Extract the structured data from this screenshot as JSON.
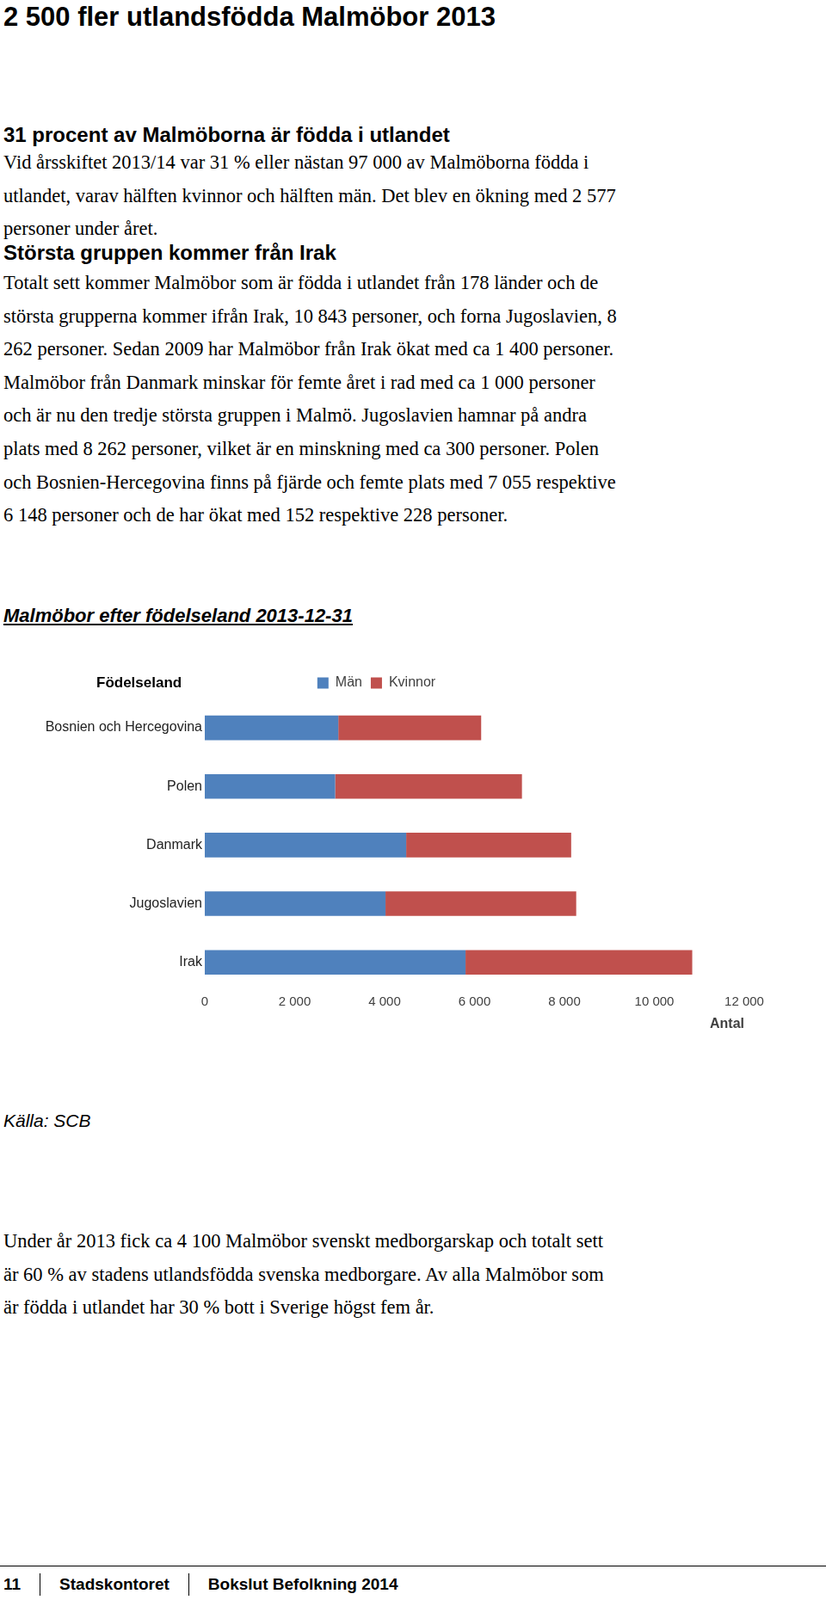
{
  "header": {
    "title": "2 500 fler utlandsfödda Malmöbor 2013"
  },
  "sections": [
    {
      "heading": "31 procent av Malmöborna är födda i utlandet",
      "lines": [
        "Vid årsskiftet 2013/14 var 31 % eller nästan 97 000 av Malmöborna födda i",
        "utlandet, varav hälften kvinnor och hälften män. Det blev en ökning med 2 577",
        "personer under året."
      ]
    },
    {
      "heading": "Största gruppen kommer från Irak",
      "lines": [
        "Totalt sett kommer Malmöbor som är födda i utlandet från 178 länder och de",
        "största grupperna kommer ifrån Irak, 10 843 personer, och forna Jugoslavien, 8",
        "262 personer. Sedan 2009 har Malmöbor från Irak ökat med ca 1 400 personer.",
        "Malmöbor från Danmark minskar för femte året i rad med ca 1 000 personer",
        "och är nu den tredje största gruppen i Malmö. Jugoslavien hamnar på andra",
        "plats med 8 262 personer, vilket är en minskning med ca 300 personer. Polen",
        "och Bosnien-Hercegovina finns på fjärde och femte plats med 7 055 respektive",
        "6 148 personer och de har ökat med 152 respektive 228 personer."
      ]
    }
  ],
  "chart_caption": "Malmöbor efter födelseland 2013-12-31",
  "chart_data": {
    "type": "bar",
    "orientation": "horizontal",
    "stacked": true,
    "legend": "top",
    "grid": false,
    "y_label": "Födelseland",
    "x_label": "Antal",
    "categories": [
      "Bosnien och Hercegovina",
      "Polen",
      "Danmark",
      "Jugoslavien",
      "Irak"
    ],
    "series": [
      {
        "name": "Män",
        "color": "#4f81bd",
        "values": [
          2970,
          2900,
          4480,
          4020,
          5800
        ]
      },
      {
        "name": "Kvinnor",
        "color": "#c0504d",
        "values": [
          3178,
          4155,
          3670,
          4242,
          5043
        ]
      }
    ],
    "xlim": [
      0,
      12000
    ],
    "xticks": [
      0,
      {
        "value": 2000,
        "label": "2 000"
      },
      {
        "value": 4000,
        "label": "4 000"
      },
      {
        "value": 6000,
        "label": "6 000"
      },
      {
        "value": 8000,
        "label": "8 000"
      },
      {
        "value": 10000,
        "label": "10 000"
      },
      {
        "value": 12000,
        "label": "12 000"
      }
    ]
  },
  "source": "Källa: SCB",
  "closing": {
    "lines": [
      "Under år 2013 fick ca 4 100 Malmöbor svenskt medborgarskap och totalt sett",
      "är 60 % av stadens utlandsfödda svenska medborgare. Av alla Malmöbor som",
      "är födda i utlandet har 30 % bott i Sverige högst fem år."
    ]
  },
  "footer": {
    "page": "11",
    "department": "Stadskontoret",
    "document": "Bokslut Befolkning 2014"
  }
}
